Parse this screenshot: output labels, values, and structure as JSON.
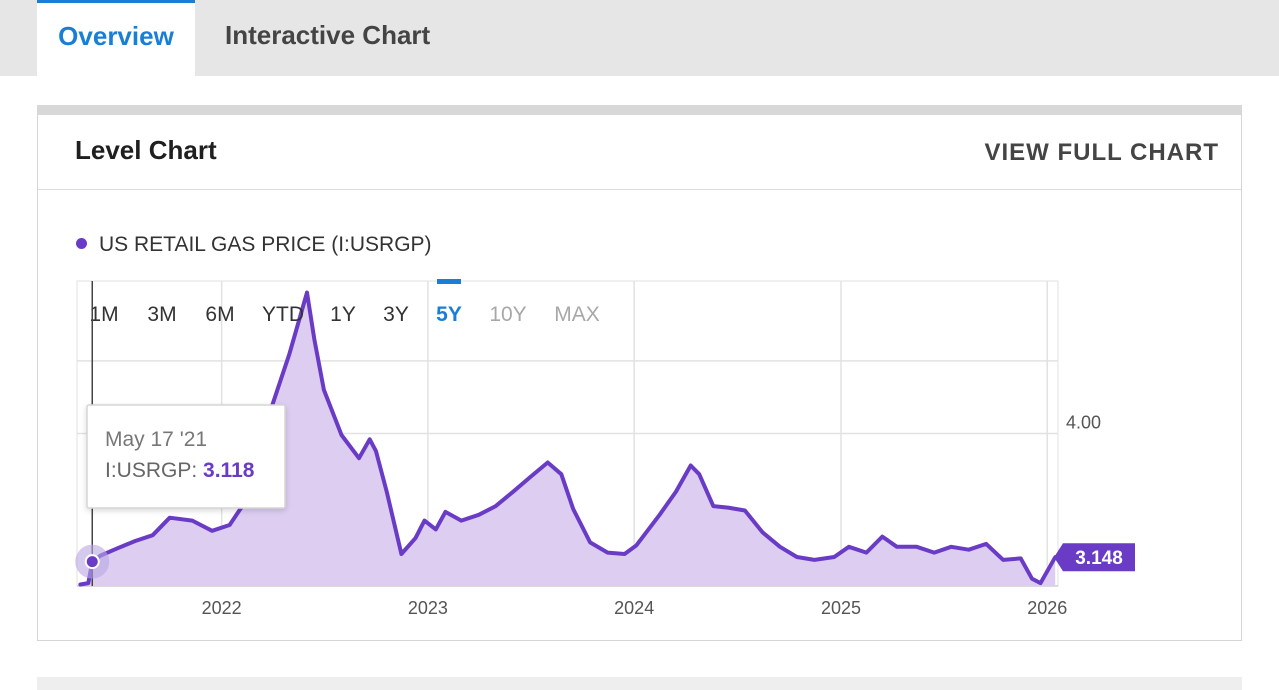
{
  "tabs": [
    {
      "label": "Overview",
      "active": true
    },
    {
      "label": "Interactive Chart",
      "active": false
    }
  ],
  "card": {
    "title": "Level Chart",
    "view_full_label": "VIEW FULL CHART"
  },
  "legend": {
    "label": "US RETAIL GAS PRICE (I:USRGP)",
    "color": "#6a3cc6"
  },
  "ranges": [
    {
      "label": "1M",
      "state": "normal"
    },
    {
      "label": "3M",
      "state": "normal"
    },
    {
      "label": "6M",
      "state": "normal"
    },
    {
      "label": "YTD",
      "state": "normal"
    },
    {
      "label": "1Y",
      "state": "normal"
    },
    {
      "label": "3Y",
      "state": "normal"
    },
    {
      "label": "5Y",
      "state": "active"
    },
    {
      "label": "10Y",
      "state": "disabled"
    },
    {
      "label": "MAX",
      "state": "disabled"
    }
  ],
  "tooltip": {
    "date": "May 17 '21",
    "series": "I:USRGP:",
    "value": "3.118"
  },
  "last_value_label": "3.148",
  "colors": {
    "accent": "#1a7fd4",
    "series": "#6a3cc6",
    "fill": "#dccdf1"
  },
  "chart_data": {
    "type": "area",
    "series": [
      {
        "name": "US RETAIL GAS PRICE (I:USRGP)",
        "x": [
          "2021-04-26",
          "2021-05-10",
          "2021-05-17",
          "2021-06-01",
          "2021-07-01",
          "2021-08-01",
          "2021-09-01",
          "2021-10-01",
          "2021-11-10",
          "2021-12-15",
          "2022-01-15",
          "2022-02-15",
          "2022-03-10",
          "2022-04-01",
          "2022-05-01",
          "2022-06-01",
          "2022-06-14",
          "2022-07-01",
          "2022-08-01",
          "2022-09-01",
          "2022-09-20",
          "2022-10-01",
          "2022-10-20",
          "2022-11-15",
          "2022-12-10",
          "2022-12-26",
          "2023-01-15",
          "2023-02-01",
          "2023-03-01",
          "2023-04-01",
          "2023-05-01",
          "2023-06-01",
          "2023-07-01",
          "2023-08-01",
          "2023-08-25",
          "2023-09-15",
          "2023-10-15",
          "2023-11-15",
          "2023-12-15",
          "2024-01-05",
          "2024-02-15",
          "2024-03-15",
          "2024-04-10",
          "2024-04-25",
          "2024-05-20",
          "2024-06-15",
          "2024-07-15",
          "2024-08-15",
          "2024-09-15",
          "2024-10-15",
          "2024-11-15",
          "2024-12-20",
          "2025-01-15",
          "2025-02-15",
          "2025-03-15",
          "2025-04-10",
          "2025-05-15",
          "2025-06-15",
          "2025-07-15",
          "2025-08-15",
          "2025-09-15",
          "2025-10-15",
          "2025-11-15",
          "2025-12-05",
          "2025-12-20",
          "2026-01-15"
        ],
        "values": [
          2.96,
          2.97,
          3.118,
          3.16,
          3.21,
          3.26,
          3.3,
          3.42,
          3.4,
          3.33,
          3.37,
          3.55,
          4.0,
          4.2,
          4.55,
          4.97,
          4.65,
          4.3,
          3.99,
          3.83,
          3.96,
          3.88,
          3.6,
          3.17,
          3.28,
          3.4,
          3.34,
          3.46,
          3.4,
          3.44,
          3.5,
          3.6,
          3.7,
          3.8,
          3.72,
          3.48,
          3.25,
          3.18,
          3.17,
          3.23,
          3.44,
          3.6,
          3.78,
          3.72,
          3.5,
          3.49,
          3.47,
          3.32,
          3.22,
          3.15,
          3.13,
          3.15,
          3.22,
          3.18,
          3.29,
          3.22,
          3.22,
          3.18,
          3.22,
          3.2,
          3.24,
          3.13,
          3.14,
          3.0,
          2.97,
          3.148
        ]
      }
    ],
    "x_ticks": [
      "2022",
      "2023",
      "2024",
      "2025",
      "2026"
    ],
    "y_ticks": [
      4.0
    ],
    "ylim": [
      2.95,
      5.05
    ],
    "xlim": [
      "2021-04-20",
      "2026-01-20"
    ],
    "grid": true,
    "legend_position": "top-left",
    "highlight": {
      "x": "2021-05-17",
      "value": 3.118
    }
  }
}
